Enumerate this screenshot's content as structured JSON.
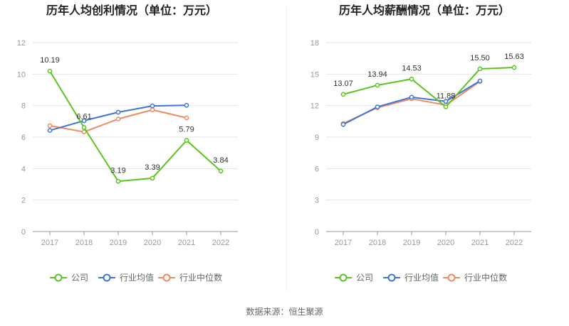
{
  "colors": {
    "company": "#5ac520",
    "industry_avg": "#3f74d9",
    "industry_median": "#ef8a62"
  },
  "legend": {
    "company": "公司",
    "industry_avg": "行业均值",
    "industry_median": "行业中位数"
  },
  "source_text": "数据来源：恒生聚源",
  "chart_data": [
    {
      "type": "line",
      "title": "历年人均创利情况（单位：万元）",
      "x": [
        "2017",
        "2018",
        "2019",
        "2020",
        "2021",
        "2022"
      ],
      "ylim": [
        0,
        12
      ],
      "yticks": [
        0,
        2,
        4,
        6,
        8,
        10,
        12
      ],
      "grid": true,
      "legend_position": "bottom",
      "series": [
        {
          "key": "company",
          "name": "公司",
          "values": [
            10.19,
            6.61,
            3.19,
            3.39,
            5.79,
            3.84
          ],
          "labels": [
            "10.19",
            "6.61",
            "3.19",
            "3.39",
            "5.79",
            "3.84"
          ]
        },
        {
          "key": "industry_avg",
          "name": "行业均值",
          "values": [
            6.42,
            7.04,
            7.58,
            7.98,
            8.02,
            null
          ]
        },
        {
          "key": "industry_median",
          "name": "行业中位数",
          "values": [
            6.72,
            6.33,
            7.15,
            7.73,
            7.22,
            null
          ]
        }
      ]
    },
    {
      "type": "line",
      "title": "历年人均薪酬情况（单位：万元）",
      "x": [
        "2017",
        "2018",
        "2019",
        "2020",
        "2021",
        "2022"
      ],
      "ylim": [
        0,
        18
      ],
      "yticks": [
        0,
        3,
        6,
        9,
        12,
        15,
        18
      ],
      "grid": true,
      "legend_position": "bottom",
      "series": [
        {
          "key": "company",
          "name": "公司",
          "values": [
            13.07,
            13.94,
            14.53,
            11.88,
            15.5,
            15.63
          ],
          "labels": [
            "13.07",
            "13.94",
            "14.53",
            "11.88",
            "15.50",
            "15.63"
          ]
        },
        {
          "key": "industry_avg",
          "name": "行业均值",
          "values": [
            10.2,
            11.88,
            12.8,
            12.4,
            14.35,
            null
          ]
        },
        {
          "key": "industry_median",
          "name": "行业中位数",
          "values": [
            10.3,
            11.8,
            12.65,
            12.05,
            14.3,
            null
          ]
        }
      ]
    }
  ]
}
